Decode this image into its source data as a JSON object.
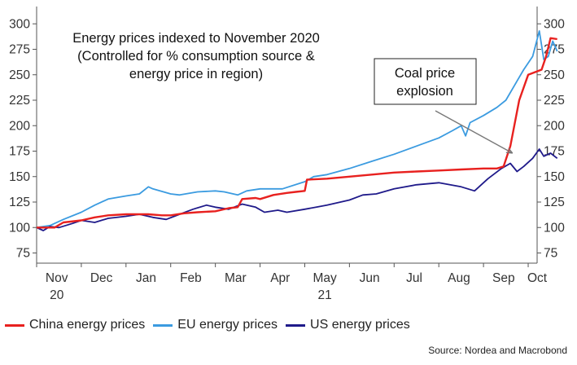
{
  "chart_data": {
    "type": "line",
    "title_lines": [
      "Energy prices indexed to November 2020",
      "(Controlled for % consumption source &",
      "energy price in region)"
    ],
    "annotation": {
      "lines": [
        "Coal price",
        "explosion"
      ],
      "arrow_to": {
        "month": 10.65,
        "value": 173
      }
    },
    "x_axis": {
      "range": [
        0,
        11.2
      ],
      "ticks": [
        {
          "month": 0.45,
          "label": "Nov"
        },
        {
          "month": 1.45,
          "label": "Dec"
        },
        {
          "month": 2.45,
          "label": "Jan"
        },
        {
          "month": 3.45,
          "label": "Feb"
        },
        {
          "month": 4.45,
          "label": "Mar"
        },
        {
          "month": 5.45,
          "label": "Apr"
        },
        {
          "month": 6.45,
          "label": "May"
        },
        {
          "month": 7.45,
          "label": "Jun"
        },
        {
          "month": 8.45,
          "label": "Jul"
        },
        {
          "month": 9.45,
          "label": "Aug"
        },
        {
          "month": 10.45,
          "label": "Sep"
        },
        {
          "month": 11.2,
          "label": "Oct"
        }
      ],
      "tick_marks": [
        0,
        1,
        2,
        3,
        4,
        5,
        6,
        7,
        8,
        9,
        10,
        11
      ],
      "year_labels": [
        {
          "month": 0.45,
          "label": "20"
        },
        {
          "month": 6.45,
          "label": "21"
        }
      ]
    },
    "y_axis": {
      "ylim": [
        65,
        305
      ],
      "ticks": [
        75,
        100,
        125,
        150,
        175,
        200,
        225,
        250,
        275,
        300
      ],
      "left_labels": true,
      "right_labels": true
    },
    "series": [
      {
        "name": "China energy prices",
        "color": "#e8211f",
        "points": [
          [
            0,
            100
          ],
          [
            0.4,
            100
          ],
          [
            0.6,
            105
          ],
          [
            1.0,
            107
          ],
          [
            1.3,
            110
          ],
          [
            1.6,
            112
          ],
          [
            2.0,
            113
          ],
          [
            2.5,
            113
          ],
          [
            2.8,
            112
          ],
          [
            3.0,
            112
          ],
          [
            3.3,
            114
          ],
          [
            3.6,
            115
          ],
          [
            4.0,
            116
          ],
          [
            4.3,
            119
          ],
          [
            4.5,
            120
          ],
          [
            4.6,
            128
          ],
          [
            4.9,
            129
          ],
          [
            5.0,
            128
          ],
          [
            5.3,
            132
          ],
          [
            5.6,
            134
          ],
          [
            5.8,
            135
          ],
          [
            6.0,
            136
          ],
          [
            6.05,
            147
          ],
          [
            6.5,
            148
          ],
          [
            7.0,
            150
          ],
          [
            7.5,
            152
          ],
          [
            8.0,
            154
          ],
          [
            8.5,
            155
          ],
          [
            9.0,
            156
          ],
          [
            9.5,
            157
          ],
          [
            10.0,
            158
          ],
          [
            10.3,
            158
          ],
          [
            10.45,
            160
          ],
          [
            10.6,
            180
          ],
          [
            10.8,
            225
          ],
          [
            11.0,
            250
          ],
          [
            11.3,
            255
          ],
          [
            11.4,
            268
          ],
          [
            11.5,
            286
          ],
          [
            11.65,
            285
          ]
        ]
      },
      {
        "name": "EU energy prices",
        "color": "#3b9be0",
        "points": [
          [
            0,
            100
          ],
          [
            0.3,
            102
          ],
          [
            0.6,
            108
          ],
          [
            1.0,
            115
          ],
          [
            1.3,
            122
          ],
          [
            1.6,
            128
          ],
          [
            2.0,
            131
          ],
          [
            2.3,
            133
          ],
          [
            2.5,
            140
          ],
          [
            2.6,
            138
          ],
          [
            3.0,
            133
          ],
          [
            3.2,
            132
          ],
          [
            3.6,
            135
          ],
          [
            4.0,
            136
          ],
          [
            4.2,
            135
          ],
          [
            4.5,
            132
          ],
          [
            4.7,
            136
          ],
          [
            5.0,
            138
          ],
          [
            5.5,
            138
          ],
          [
            6.0,
            145
          ],
          [
            6.2,
            150
          ],
          [
            6.5,
            152
          ],
          [
            7.0,
            158
          ],
          [
            7.5,
            165
          ],
          [
            8.0,
            172
          ],
          [
            8.5,
            180
          ],
          [
            9.0,
            188
          ],
          [
            9.3,
            195
          ],
          [
            9.5,
            200
          ],
          [
            9.6,
            190
          ],
          [
            9.7,
            203
          ],
          [
            10.0,
            210
          ],
          [
            10.3,
            218
          ],
          [
            10.5,
            225
          ],
          [
            10.7,
            240
          ],
          [
            10.9,
            255
          ],
          [
            11.1,
            268
          ],
          [
            11.25,
            293
          ],
          [
            11.35,
            265
          ],
          [
            11.45,
            268
          ],
          [
            11.55,
            283
          ],
          [
            11.65,
            273
          ]
        ]
      },
      {
        "name": "US energy prices",
        "color": "#1f1a8a",
        "points": [
          [
            0,
            100
          ],
          [
            0.15,
            97
          ],
          [
            0.3,
            101
          ],
          [
            0.5,
            100
          ],
          [
            0.8,
            104
          ],
          [
            1.0,
            107
          ],
          [
            1.3,
            105
          ],
          [
            1.6,
            109
          ],
          [
            2.0,
            111
          ],
          [
            2.3,
            113
          ],
          [
            2.6,
            110
          ],
          [
            2.9,
            108
          ],
          [
            3.2,
            113
          ],
          [
            3.5,
            118
          ],
          [
            3.8,
            122
          ],
          [
            4.0,
            120
          ],
          [
            4.3,
            118
          ],
          [
            4.6,
            123
          ],
          [
            4.9,
            120
          ],
          [
            5.1,
            115
          ],
          [
            5.4,
            117
          ],
          [
            5.6,
            115
          ],
          [
            6.0,
            118
          ],
          [
            6.5,
            122
          ],
          [
            7.0,
            127
          ],
          [
            7.3,
            132
          ],
          [
            7.6,
            133
          ],
          [
            8.0,
            138
          ],
          [
            8.5,
            142
          ],
          [
            9.0,
            144
          ],
          [
            9.5,
            140
          ],
          [
            9.8,
            136
          ],
          [
            10.1,
            148
          ],
          [
            10.4,
            158
          ],
          [
            10.6,
            163
          ],
          [
            10.75,
            155
          ],
          [
            10.9,
            160
          ],
          [
            11.1,
            168
          ],
          [
            11.25,
            177
          ],
          [
            11.35,
            170
          ],
          [
            11.5,
            173
          ],
          [
            11.65,
            168
          ]
        ]
      }
    ],
    "legend": [
      {
        "label": "China energy prices",
        "color": "#e8211f"
      },
      {
        "label": "EU energy prices",
        "color": "#3b9be0"
      },
      {
        "label": "US energy prices",
        "color": "#1f1a8a"
      }
    ],
    "source": "Source: Nordea and Macrobond"
  }
}
